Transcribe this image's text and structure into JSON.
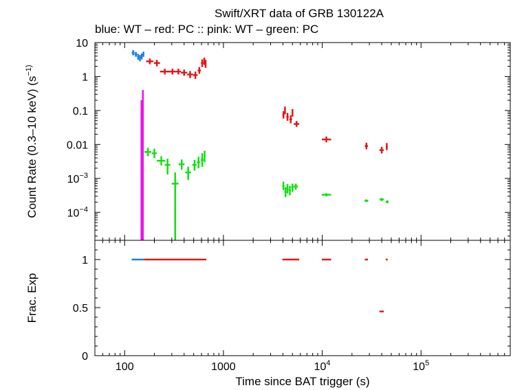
{
  "chart_data": {
    "type": "scatter",
    "title": "Swift/XRT data of GRB 130122A",
    "subtitle": "blue: WT  – red: PC  :: pink: WT  – green: PC",
    "xlabel": "Time since BAT trigger (s)",
    "x_scale": "log",
    "xlim": [
      50,
      800000
    ],
    "x_ticks": [
      {
        "value": 100,
        "label": "100"
      },
      {
        "value": 1000,
        "label": "1000"
      },
      {
        "value": 10000,
        "label": "10^4"
      },
      {
        "value": 100000,
        "label": "10^5"
      }
    ],
    "panels": [
      {
        "ylabel": "Count Rate (0.3–10 keV) (s^-1)",
        "y_scale": "log",
        "ylim": [
          1.5e-05,
          10
        ],
        "y_ticks": [
          {
            "value": 10,
            "label": "10"
          },
          {
            "value": 1,
            "label": "1"
          },
          {
            "value": 0.1,
            "label": "0.1"
          },
          {
            "value": 0.01,
            "label": "0.01"
          },
          {
            "value": 0.001,
            "label": "10^-3"
          },
          {
            "value": 0.0001,
            "label": "10^-4"
          }
        ],
        "series": [
          {
            "name": "WT",
            "color": "#1e7fe0",
            "points": [
              {
                "x": 122,
                "y": 5.0,
                "xlo": 118,
                "xhi": 126,
                "ylo": 4.2,
                "yhi": 6.0
              },
              {
                "x": 130,
                "y": 4.5,
                "xlo": 126,
                "xhi": 134,
                "ylo": 3.8,
                "yhi": 5.3
              },
              {
                "x": 137,
                "y": 3.8,
                "xlo": 134,
                "xhi": 140,
                "ylo": 3.1,
                "yhi": 4.6
              },
              {
                "x": 143,
                "y": 3.5,
                "xlo": 140,
                "xhi": 146,
                "ylo": 2.8,
                "yhi": 4.3
              },
              {
                "x": 149,
                "y": 4.0,
                "xlo": 146,
                "xhi": 152,
                "ylo": 3.2,
                "yhi": 4.8
              },
              {
                "x": 155,
                "y": 4.6,
                "xlo": 152,
                "xhi": 158,
                "ylo": 3.8,
                "yhi": 5.4
              }
            ]
          },
          {
            "name": "PC",
            "color": "#e01818",
            "points": [
              {
                "x": 180,
                "y": 2.8,
                "xlo": 165,
                "xhi": 195,
                "ylo": 2.3,
                "yhi": 3.4
              },
              {
                "x": 212,
                "y": 2.5,
                "xlo": 198,
                "xhi": 228,
                "ylo": 2.0,
                "yhi": 3.1
              },
              {
                "x": 255,
                "y": 1.4,
                "xlo": 228,
                "xhi": 282,
                "ylo": 1.15,
                "yhi": 1.7
              },
              {
                "x": 305,
                "y": 1.4,
                "xlo": 282,
                "xhi": 330,
                "ylo": 1.15,
                "yhi": 1.7
              },
              {
                "x": 350,
                "y": 1.4,
                "xlo": 330,
                "xhi": 372,
                "ylo": 1.15,
                "yhi": 1.7
              },
              {
                "x": 400,
                "y": 1.3,
                "xlo": 372,
                "xhi": 430,
                "ylo": 1.05,
                "yhi": 1.6
              },
              {
                "x": 460,
                "y": 1.15,
                "xlo": 430,
                "xhi": 492,
                "ylo": 0.9,
                "yhi": 1.45
              },
              {
                "x": 520,
                "y": 1.1,
                "xlo": 492,
                "xhi": 548,
                "ylo": 0.85,
                "yhi": 1.4
              },
              {
                "x": 570,
                "y": 1.5,
                "xlo": 548,
                "xhi": 592,
                "ylo": 1.2,
                "yhi": 1.9
              },
              {
                "x": 610,
                "y": 2.5,
                "xlo": 592,
                "xhi": 628,
                "ylo": 1.9,
                "yhi": 3.2
              },
              {
                "x": 640,
                "y": 2.9,
                "xlo": 628,
                "xhi": 655,
                "ylo": 2.2,
                "yhi": 3.6
              },
              {
                "x": 660,
                "y": 2.4,
                "xlo": 648,
                "xhi": 672,
                "ylo": 1.8,
                "yhi": 3.1
              },
              {
                "x": 4050,
                "y": 0.075,
                "xlo": 3950,
                "xhi": 4150,
                "ylo": 0.058,
                "yhi": 0.095
              },
              {
                "x": 4200,
                "y": 0.1,
                "xlo": 4130,
                "xhi": 4270,
                "ylo": 0.078,
                "yhi": 0.13
              },
              {
                "x": 4450,
                "y": 0.065,
                "xlo": 4330,
                "xhi": 4570,
                "ylo": 0.05,
                "yhi": 0.085
              },
              {
                "x": 4800,
                "y": 0.055,
                "xlo": 4650,
                "xhi": 4950,
                "ylo": 0.042,
                "yhi": 0.072
              },
              {
                "x": 5000,
                "y": 0.085,
                "xlo": 4930,
                "xhi": 5070,
                "ylo": 0.066,
                "yhi": 0.11
              },
              {
                "x": 5500,
                "y": 0.04,
                "xlo": 5150,
                "xhi": 5850,
                "ylo": 0.033,
                "yhi": 0.049
              },
              {
                "x": 11000,
                "y": 0.014,
                "xlo": 9900,
                "xhi": 12300,
                "ylo": 0.0115,
                "yhi": 0.017
              },
              {
                "x": 28000,
                "y": 0.009,
                "xlo": 27000,
                "xhi": 29000,
                "ylo": 0.0072,
                "yhi": 0.0112
              },
              {
                "x": 40000,
                "y": 0.0068,
                "xlo": 38000,
                "xhi": 42000,
                "ylo": 0.0054,
                "yhi": 0.0085
              },
              {
                "x": 45000,
                "y": 0.0085,
                "xlo": 44000,
                "xhi": 46000,
                "ylo": 0.0068,
                "yhi": 0.011
              }
            ]
          },
          {
            "name": "WT",
            "color": "#ee10ee",
            "points": [
              {
                "x": 148,
                "y": 0.09,
                "xlo": 145,
                "xhi": 151,
                "ylo": 1.5e-05,
                "yhi": 0.2
              },
              {
                "x": 153,
                "y": 0.12,
                "xlo": 151,
                "xhi": 155,
                "ylo": 1.5e-05,
                "yhi": 0.4
              }
            ]
          },
          {
            "name": "PC",
            "color": "#10e010",
            "points": [
              {
                "x": 172,
                "y": 0.006,
                "xlo": 158,
                "xhi": 186,
                "ylo": 0.0045,
                "yhi": 0.008
              },
              {
                "x": 200,
                "y": 0.0055,
                "xlo": 188,
                "xhi": 212,
                "ylo": 0.004,
                "yhi": 0.0075
              },
              {
                "x": 235,
                "y": 0.0033,
                "xlo": 212,
                "xhi": 258,
                "ylo": 0.0024,
                "yhi": 0.0045
              },
              {
                "x": 272,
                "y": 0.0025,
                "xlo": 255,
                "xhi": 290,
                "ylo": 0.0013,
                "yhi": 0.0038
              },
              {
                "x": 325,
                "y": 0.0007,
                "xlo": 300,
                "xhi": 352,
                "ylo": 1.5e-05,
                "yhi": 0.0015
              },
              {
                "x": 378,
                "y": 0.0026,
                "xlo": 352,
                "xhi": 404,
                "ylo": 0.0018,
                "yhi": 0.0036
              },
              {
                "x": 440,
                "y": 0.0015,
                "xlo": 410,
                "xhi": 470,
                "ylo": 0.0009,
                "yhi": 0.0022
              },
              {
                "x": 510,
                "y": 0.0025,
                "xlo": 485,
                "xhi": 535,
                "ylo": 0.0017,
                "yhi": 0.0035
              },
              {
                "x": 560,
                "y": 0.003,
                "xlo": 540,
                "xhi": 578,
                "ylo": 0.002,
                "yhi": 0.0043
              },
              {
                "x": 610,
                "y": 0.0035,
                "xlo": 590,
                "xhi": 630,
                "ylo": 0.0022,
                "yhi": 0.0055
              },
              {
                "x": 645,
                "y": 0.0045,
                "xlo": 632,
                "xhi": 658,
                "ylo": 0.003,
                "yhi": 0.0065
              },
              {
                "x": 4050,
                "y": 0.0006,
                "xlo": 3950,
                "xhi": 4150,
                "ylo": 0.00045,
                "yhi": 0.0008
              },
              {
                "x": 4250,
                "y": 0.0004,
                "xlo": 4150,
                "xhi": 4350,
                "ylo": 0.00028,
                "yhi": 0.00055
              },
              {
                "x": 4450,
                "y": 0.0005,
                "xlo": 4350,
                "xhi": 4550,
                "ylo": 0.00036,
                "yhi": 0.00068
              },
              {
                "x": 4700,
                "y": 0.00045,
                "xlo": 4580,
                "xhi": 4820,
                "ylo": 0.00032,
                "yhi": 0.0006
              },
              {
                "x": 5000,
                "y": 0.00055,
                "xlo": 4850,
                "xhi": 5150,
                "ylo": 0.0004,
                "yhi": 0.0007
              },
              {
                "x": 5400,
                "y": 0.00058,
                "xlo": 5150,
                "xhi": 5650,
                "ylo": 0.00047,
                "yhi": 0.0007
              },
              {
                "x": 11000,
                "y": 0.00033,
                "xlo": 9900,
                "xhi": 12300,
                "ylo": 0.000295,
                "yhi": 0.000365
              },
              {
                "x": 28000,
                "y": 0.00022,
                "xlo": 26800,
                "xhi": 29200,
                "ylo": 0.0002,
                "yhi": 0.00024
              },
              {
                "x": 40000,
                "y": 0.00024,
                "xlo": 38000,
                "xhi": 42000,
                "ylo": 0.000215,
                "yhi": 0.000265
              },
              {
                "x": 45500,
                "y": 0.000205,
                "xlo": 44000,
                "xhi": 47000,
                "ylo": 0.000185,
                "yhi": 0.000225
              }
            ]
          }
        ]
      },
      {
        "ylabel": "Frac. Exp",
        "y_scale": "linear",
        "ylim": [
          0,
          1.2
        ],
        "y_ticks": [
          {
            "value": 1,
            "label": "1"
          },
          {
            "value": 0.5,
            "label": "0.5"
          },
          {
            "value": 0,
            "label": "0"
          }
        ],
        "segments": [
          {
            "x0": 118,
            "x1": 158,
            "y": 1,
            "color": "#1e7fe0"
          },
          {
            "x0": 158,
            "x1": 672,
            "y": 1,
            "color": "#e01818"
          },
          {
            "x0": 3950,
            "x1": 5850,
            "y": 1,
            "color": "#e01818"
          },
          {
            "x0": 9900,
            "x1": 12300,
            "y": 1,
            "color": "#e01818"
          },
          {
            "x0": 27000,
            "x1": 29000,
            "y": 1,
            "color": "#e01818"
          },
          {
            "x0": 44000,
            "x1": 46000,
            "y": 1,
            "color": "#e01818"
          },
          {
            "x0": 38000,
            "x1": 42000,
            "y": 0.46,
            "color": "#e01818"
          }
        ]
      }
    ]
  }
}
